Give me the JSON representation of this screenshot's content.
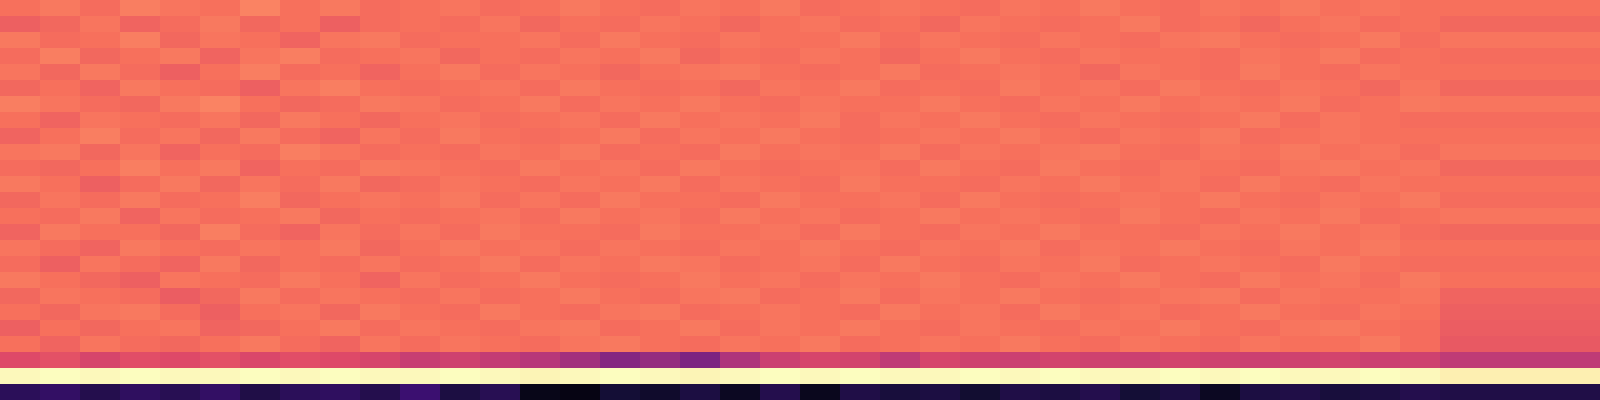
{
  "chart_data": {
    "type": "heatmap",
    "color": "magma",
    "tick_labels": false,
    "zlim": [
      0,
      1
    ],
    "cells": [
      [
        0.7,
        0.72,
        0.69,
        0.73,
        0.71,
        0.7,
        0.74,
        0.7,
        0.72,
        0.69,
        0.7,
        0.71,
        0.69,
        0.7,
        0.72,
        0.7,
        0.69,
        0.71,
        0.7,
        0.72,
        0.69,
        0.7,
        0.71,
        0.7,
        0.69,
        0.71,
        0.7,
        0.72,
        0.7,
        0.69,
        0.71,
        0.7,
        0.72,
        0.7,
        0.71,
        0.7,
        0.7,
        0.7,
        0.7,
        0.7
      ],
      [
        0.66,
        0.68,
        0.71,
        0.67,
        0.69,
        0.72,
        0.68,
        0.7,
        0.66,
        0.69,
        0.7,
        0.69,
        0.71,
        0.68,
        0.7,
        0.69,
        0.71,
        0.7,
        0.68,
        0.7,
        0.71,
        0.69,
        0.7,
        0.68,
        0.71,
        0.7,
        0.69,
        0.7,
        0.72,
        0.69,
        0.7,
        0.68,
        0.7,
        0.71,
        0.69,
        0.7,
        0.68,
        0.68,
        0.68,
        0.68
      ],
      [
        0.72,
        0.69,
        0.7,
        0.73,
        0.68,
        0.71,
        0.7,
        0.67,
        0.71,
        0.72,
        0.69,
        0.7,
        0.7,
        0.71,
        0.69,
        0.72,
        0.7,
        0.69,
        0.71,
        0.7,
        0.7,
        0.72,
        0.69,
        0.71,
        0.7,
        0.69,
        0.71,
        0.7,
        0.69,
        0.71,
        0.72,
        0.7,
        0.69,
        0.7,
        0.72,
        0.69,
        0.71,
        0.71,
        0.71,
        0.71
      ],
      [
        0.69,
        0.73,
        0.68,
        0.7,
        0.72,
        0.67,
        0.71,
        0.73,
        0.69,
        0.7,
        0.71,
        0.68,
        0.7,
        0.69,
        0.71,
        0.7,
        0.72,
        0.68,
        0.7,
        0.69,
        0.71,
        0.7,
        0.68,
        0.7,
        0.72,
        0.7,
        0.69,
        0.71,
        0.7,
        0.7,
        0.69,
        0.71,
        0.7,
        0.72,
        0.69,
        0.7,
        0.69,
        0.69,
        0.69,
        0.69
      ],
      [
        0.71,
        0.68,
        0.72,
        0.69,
        0.66,
        0.7,
        0.73,
        0.69,
        0.7,
        0.67,
        0.7,
        0.72,
        0.69,
        0.71,
        0.7,
        0.68,
        0.7,
        0.71,
        0.72,
        0.7,
        0.69,
        0.7,
        0.72,
        0.69,
        0.7,
        0.71,
        0.7,
        0.68,
        0.71,
        0.7,
        0.69,
        0.72,
        0.7,
        0.69,
        0.71,
        0.7,
        0.7,
        0.7,
        0.7,
        0.7
      ],
      [
        0.68,
        0.7,
        0.67,
        0.72,
        0.7,
        0.69,
        0.66,
        0.71,
        0.73,
        0.7,
        0.69,
        0.7,
        0.71,
        0.69,
        0.72,
        0.7,
        0.69,
        0.7,
        0.68,
        0.71,
        0.7,
        0.72,
        0.69,
        0.7,
        0.69,
        0.72,
        0.7,
        0.71,
        0.69,
        0.72,
        0.7,
        0.69,
        0.71,
        0.7,
        0.68,
        0.71,
        0.68,
        0.68,
        0.68,
        0.68
      ],
      [
        0.73,
        0.71,
        0.69,
        0.68,
        0.72,
        0.74,
        0.7,
        0.68,
        0.69,
        0.72,
        0.71,
        0.69,
        0.7,
        0.72,
        0.69,
        0.71,
        0.7,
        0.72,
        0.7,
        0.69,
        0.71,
        0.7,
        0.7,
        0.72,
        0.7,
        0.69,
        0.71,
        0.7,
        0.72,
        0.7,
        0.71,
        0.7,
        0.72,
        0.69,
        0.7,
        0.72,
        0.71,
        0.71,
        0.71,
        0.71
      ],
      [
        0.7,
        0.67,
        0.71,
        0.7,
        0.69,
        0.71,
        0.68,
        0.72,
        0.7,
        0.68,
        0.7,
        0.71,
        0.69,
        0.7,
        0.71,
        0.69,
        0.72,
        0.7,
        0.71,
        0.7,
        0.72,
        0.69,
        0.71,
        0.7,
        0.72,
        0.7,
        0.69,
        0.71,
        0.7,
        0.69,
        0.7,
        0.72,
        0.69,
        0.71,
        0.7,
        0.69,
        0.69,
        0.69,
        0.69,
        0.69
      ],
      [
        0.67,
        0.7,
        0.73,
        0.69,
        0.71,
        0.68,
        0.72,
        0.69,
        0.67,
        0.71,
        0.69,
        0.72,
        0.7,
        0.69,
        0.7,
        0.72,
        0.69,
        0.71,
        0.7,
        0.72,
        0.7,
        0.69,
        0.7,
        0.71,
        0.7,
        0.72,
        0.7,
        0.69,
        0.71,
        0.7,
        0.72,
        0.69,
        0.7,
        0.71,
        0.7,
        0.7,
        0.7,
        0.7,
        0.7,
        0.7
      ],
      [
        0.71,
        0.72,
        0.68,
        0.71,
        0.67,
        0.7,
        0.69,
        0.73,
        0.71,
        0.69,
        0.7,
        0.69,
        0.71,
        0.7,
        0.72,
        0.69,
        0.7,
        0.69,
        0.72,
        0.7,
        0.71,
        0.7,
        0.72,
        0.69,
        0.71,
        0.7,
        0.71,
        0.72,
        0.7,
        0.69,
        0.71,
        0.7,
        0.72,
        0.7,
        0.71,
        0.69,
        0.71,
        0.71,
        0.71,
        0.71
      ],
      [
        0.69,
        0.68,
        0.7,
        0.73,
        0.7,
        0.72,
        0.67,
        0.7,
        0.69,
        0.72,
        0.71,
        0.7,
        0.69,
        0.72,
        0.7,
        0.71,
        0.69,
        0.72,
        0.7,
        0.69,
        0.7,
        0.71,
        0.69,
        0.72,
        0.7,
        0.69,
        0.72,
        0.7,
        0.69,
        0.71,
        0.7,
        0.69,
        0.71,
        0.72,
        0.7,
        0.71,
        0.68,
        0.68,
        0.68,
        0.68
      ],
      [
        0.72,
        0.7,
        0.66,
        0.69,
        0.72,
        0.68,
        0.71,
        0.69,
        0.72,
        0.68,
        0.69,
        0.71,
        0.7,
        0.69,
        0.71,
        0.7,
        0.72,
        0.69,
        0.71,
        0.7,
        0.69,
        0.72,
        0.7,
        0.7,
        0.69,
        0.71,
        0.7,
        0.72,
        0.7,
        0.71,
        0.69,
        0.72,
        0.7,
        0.69,
        0.71,
        0.7,
        0.7,
        0.7,
        0.7,
        0.7
      ],
      [
        0.68,
        0.71,
        0.69,
        0.72,
        0.69,
        0.7,
        0.73,
        0.68,
        0.7,
        0.71,
        0.7,
        0.72,
        0.69,
        0.71,
        0.69,
        0.72,
        0.7,
        0.7,
        0.69,
        0.72,
        0.7,
        0.7,
        0.71,
        0.69,
        0.72,
        0.7,
        0.69,
        0.7,
        0.71,
        0.7,
        0.72,
        0.7,
        0.69,
        0.71,
        0.7,
        0.72,
        0.69,
        0.69,
        0.69,
        0.69
      ],
      [
        0.7,
        0.69,
        0.72,
        0.67,
        0.71,
        0.69,
        0.7,
        0.72,
        0.68,
        0.7,
        0.69,
        0.7,
        0.71,
        0.69,
        0.72,
        0.7,
        0.71,
        0.69,
        0.72,
        0.7,
        0.71,
        0.69,
        0.7,
        0.72,
        0.7,
        0.71,
        0.7,
        0.69,
        0.72,
        0.7,
        0.69,
        0.71,
        0.7,
        0.72,
        0.69,
        0.7,
        0.71,
        0.71,
        0.71,
        0.71
      ],
      [
        0.67,
        0.72,
        0.7,
        0.7,
        0.68,
        0.73,
        0.69,
        0.67,
        0.71,
        0.69,
        0.71,
        0.69,
        0.72,
        0.7,
        0.7,
        0.69,
        0.72,
        0.7,
        0.7,
        0.71,
        0.69,
        0.72,
        0.7,
        0.69,
        0.71,
        0.7,
        0.72,
        0.7,
        0.7,
        0.69,
        0.71,
        0.7,
        0.72,
        0.7,
        0.71,
        0.69,
        0.68,
        0.68,
        0.68,
        0.68
      ],
      [
        0.71,
        0.69,
        0.67,
        0.72,
        0.7,
        0.69,
        0.71,
        0.7,
        0.72,
        0.68,
        0.7,
        0.72,
        0.7,
        0.71,
        0.69,
        0.71,
        0.7,
        0.69,
        0.71,
        0.7,
        0.72,
        0.7,
        0.69,
        0.71,
        0.7,
        0.72,
        0.69,
        0.71,
        0.7,
        0.72,
        0.7,
        0.69,
        0.71,
        0.7,
        0.72,
        0.7,
        0.7,
        0.7,
        0.7,
        0.7
      ],
      [
        0.69,
        0.66,
        0.71,
        0.69,
        0.67,
        0.72,
        0.68,
        0.7,
        0.69,
        0.71,
        0.69,
        0.7,
        0.72,
        0.69,
        0.71,
        0.7,
        0.72,
        0.71,
        0.69,
        0.7,
        0.71,
        0.69,
        0.72,
        0.7,
        0.69,
        0.71,
        0.7,
        0.72,
        0.69,
        0.7,
        0.71,
        0.7,
        0.69,
        0.72,
        0.7,
        0.69,
        0.69,
        0.69,
        0.69,
        0.69
      ],
      [
        0.72,
        0.7,
        0.68,
        0.66,
        0.71,
        0.7,
        0.69,
        0.72,
        0.7,
        0.67,
        0.71,
        0.69,
        0.7,
        0.72,
        0.7,
        0.69,
        0.7,
        0.72,
        0.7,
        0.71,
        0.69,
        0.71,
        0.7,
        0.72,
        0.7,
        0.69,
        0.71,
        0.7,
        0.72,
        0.7,
        0.69,
        0.72,
        0.7,
        0.71,
        0.69,
        0.72,
        0.7,
        0.7,
        0.7,
        0.7
      ],
      [
        0.68,
        0.71,
        0.7,
        0.69,
        0.65,
        0.68,
        0.72,
        0.69,
        0.71,
        0.7,
        0.69,
        0.71,
        0.69,
        0.7,
        0.72,
        0.7,
        0.69,
        0.71,
        0.72,
        0.69,
        0.7,
        0.72,
        0.69,
        0.71,
        0.7,
        0.72,
        0.7,
        0.69,
        0.7,
        0.71,
        0.72,
        0.69,
        0.71,
        0.7,
        0.7,
        0.71,
        0.67,
        0.67,
        0.67,
        0.67
      ],
      [
        0.7,
        0.68,
        0.71,
        0.72,
        0.69,
        0.66,
        0.7,
        0.71,
        0.68,
        0.72,
        0.7,
        0.69,
        0.72,
        0.7,
        0.69,
        0.71,
        0.72,
        0.69,
        0.7,
        0.71,
        0.7,
        0.69,
        0.72,
        0.7,
        0.71,
        0.69,
        0.72,
        0.7,
        0.71,
        0.69,
        0.7,
        0.72,
        0.7,
        0.69,
        0.71,
        0.7,
        0.66,
        0.66,
        0.66,
        0.66
      ],
      [
        0.66,
        0.7,
        0.68,
        0.7,
        0.71,
        0.67,
        0.68,
        0.7,
        0.72,
        0.69,
        0.71,
        0.7,
        0.69,
        0.71,
        0.72,
        0.69,
        0.7,
        0.72,
        0.69,
        0.71,
        0.7,
        0.72,
        0.7,
        0.69,
        0.71,
        0.7,
        0.69,
        0.71,
        0.7,
        0.72,
        0.7,
        0.69,
        0.71,
        0.72,
        0.7,
        0.69,
        0.65,
        0.65,
        0.65,
        0.65
      ],
      [
        0.7,
        0.67,
        0.71,
        0.69,
        0.68,
        0.7,
        0.72,
        0.69,
        0.67,
        0.71,
        0.69,
        0.71,
        0.7,
        0.69,
        0.71,
        0.72,
        0.7,
        0.69,
        0.71,
        0.7,
        0.72,
        0.69,
        0.7,
        0.71,
        0.7,
        0.72,
        0.7,
        0.69,
        0.71,
        0.7,
        0.69,
        0.71,
        0.7,
        0.7,
        0.72,
        0.69,
        0.64,
        0.64,
        0.64,
        0.64
      ],
      [
        0.6,
        0.62,
        0.58,
        0.61,
        0.6,
        0.62,
        0.59,
        0.61,
        0.6,
        0.58,
        0.54,
        0.56,
        0.53,
        0.5,
        0.45,
        0.38,
        0.42,
        0.36,
        0.48,
        0.55,
        0.58,
        0.57,
        0.52,
        0.58,
        0.56,
        0.55,
        0.57,
        0.56,
        0.55,
        0.57,
        0.56,
        0.55,
        0.56,
        0.57,
        0.55,
        0.56,
        0.52,
        0.52,
        0.52,
        0.52
      ],
      [
        0.99,
        1.0,
        0.99,
        1.0,
        0.99,
        0.99,
        1.0,
        0.99,
        1.0,
        0.99,
        0.99,
        1.0,
        0.99,
        0.98,
        0.99,
        1.0,
        0.99,
        0.98,
        0.99,
        1.0,
        0.99,
        1.0,
        0.99,
        0.99,
        1.0,
        0.99,
        1.0,
        0.99,
        0.99,
        1.0,
        0.99,
        1.0,
        0.99,
        0.99,
        1.0,
        0.99,
        0.97,
        0.97,
        0.97,
        0.97
      ],
      [
        0.16,
        0.18,
        0.14,
        0.17,
        0.15,
        0.18,
        0.13,
        0.16,
        0.17,
        0.14,
        0.2,
        0.12,
        0.15,
        0.04,
        0.03,
        0.1,
        0.08,
        0.12,
        0.06,
        0.14,
        0.05,
        0.13,
        0.11,
        0.12,
        0.09,
        0.13,
        0.12,
        0.14,
        0.1,
        0.12,
        0.06,
        0.12,
        0.13,
        0.11,
        0.12,
        0.14,
        0.13,
        0.13,
        0.13,
        0.13
      ]
    ]
  }
}
